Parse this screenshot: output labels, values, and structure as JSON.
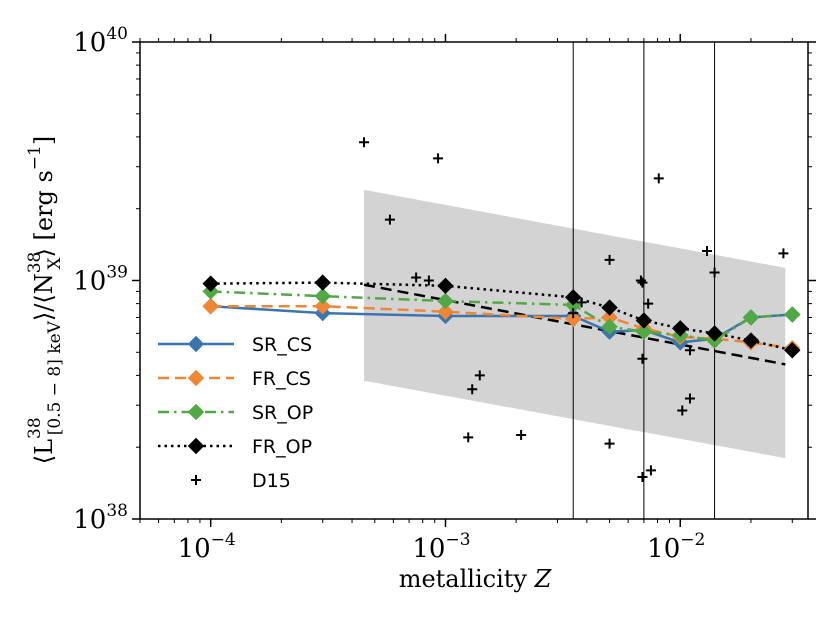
{
  "chart_data": {
    "type": "line",
    "title": "",
    "xlabel": "metallicity Z",
    "xlabel_text": "metallicity",
    "xlabel_var": "Z",
    "ylabel": "⟨L^38_[0.5−8] keV⟩/⟨N^38_X⟩ [erg s^−1]",
    "ylabel_parts": {
      "open": "⟨L",
      "sup": "38",
      "sub": "[0.5 − 8] keV",
      "mid": "⟩/⟨N",
      "sup2": "38",
      "sub2": "X",
      "close": "⟩ [erg s",
      "unit_sup": "−1",
      "end": "]"
    },
    "xscale": "log",
    "yscale": "log",
    "xlim": [
      5e-05,
      0.035
    ],
    "ylim": [
      1e+38,
      1e+40
    ],
    "x_ticks": [
      {
        "value": 0.0001,
        "base": "10",
        "exp": "−4"
      },
      {
        "value": 0.001,
        "base": "10",
        "exp": "−3"
      },
      {
        "value": 0.01,
        "base": "10",
        "exp": "−2"
      }
    ],
    "y_ticks": [
      {
        "value": 1e+38,
        "base": "10",
        "exp": "38"
      },
      {
        "value": 1e+39,
        "base": "10",
        "exp": "39"
      },
      {
        "value": 1e+40,
        "base": "10",
        "exp": "40"
      }
    ],
    "series": [
      {
        "name": "SR_CS",
        "color": "#3b75af",
        "dash": "solid",
        "marker": "diamond",
        "points": [
          [
            0.0001,
            7.8e+38
          ],
          [
            0.0003,
            7.3e+38
          ],
          [
            0.001,
            7.1e+38
          ],
          [
            0.0035,
            7.1e+38
          ],
          [
            0.005,
            6.1e+38
          ],
          [
            0.007,
            6.2e+38
          ],
          [
            0.01,
            5.5e+38
          ],
          [
            0.014,
            5.7e+38
          ],
          [
            0.02,
            7e+38
          ],
          [
            0.03,
            7.2e+38
          ]
        ]
      },
      {
        "name": "FR_CS",
        "color": "#ef8636",
        "dash": "dashed",
        "marker": "diamond",
        "points": [
          [
            0.0001,
            7.8e+38
          ],
          [
            0.0003,
            7.8e+38
          ],
          [
            0.001,
            7.4e+38
          ],
          [
            0.0035,
            6.9e+38
          ],
          [
            0.005,
            7e+38
          ],
          [
            0.007,
            6.3e+38
          ],
          [
            0.01,
            5.8e+38
          ],
          [
            0.014,
            5.7e+38
          ],
          [
            0.02,
            5.5e+38
          ],
          [
            0.03,
            5.2e+38
          ]
        ]
      },
      {
        "name": "SR_OP",
        "color": "#51a845",
        "dash": "dashdot",
        "marker": "diamond",
        "points": [
          [
            0.0001,
            9e+38
          ],
          [
            0.0003,
            8.6e+38
          ],
          [
            0.001,
            8.2e+38
          ],
          [
            0.0035,
            7.9e+38
          ],
          [
            0.005,
            6.4e+38
          ],
          [
            0.007,
            6.1e+38
          ],
          [
            0.01,
            5.9e+38
          ],
          [
            0.014,
            5.6e+38
          ],
          [
            0.02,
            7e+38
          ],
          [
            0.03,
            7.2e+38
          ]
        ]
      },
      {
        "name": "FR_OP",
        "color": "#000000",
        "dash": "dotted",
        "marker": "diamond",
        "points": [
          [
            0.0001,
            9.7e+38
          ],
          [
            0.0003,
            9.8e+38
          ],
          [
            0.001,
            9.5e+38
          ],
          [
            0.0035,
            8.5e+38
          ],
          [
            0.005,
            7.7e+38
          ],
          [
            0.007,
            6.8e+38
          ],
          [
            0.01,
            6.3e+38
          ],
          [
            0.014,
            6e+38
          ],
          [
            0.02,
            5.6e+38
          ],
          [
            0.03,
            5.1e+38
          ]
        ]
      },
      {
        "name": "D15",
        "color": "#000000",
        "marker": "plus",
        "line": "none",
        "points": [
          [
            0.00045,
            3.8e+39
          ],
          [
            0.00058,
            1.8e+39
          ],
          [
            0.00075,
            1.03e+39
          ],
          [
            0.00085,
            1e+39
          ],
          [
            0.00093,
            3.25e+39
          ],
          [
            0.0013,
            3.5e+38
          ],
          [
            0.00125,
            2.2e+38
          ],
          [
            0.0014,
            4e+38
          ],
          [
            0.0021,
            2.25e+38
          ],
          [
            0.0035,
            7.3e+38
          ],
          [
            0.0038,
            8.1e+38
          ],
          [
            0.005,
            1.22e+39
          ],
          [
            0.005,
            2.07e+38
          ],
          [
            0.0068,
            1e+39
          ],
          [
            0.0069,
            9.8e+38
          ],
          [
            0.0069,
            4.7e+38
          ],
          [
            0.0069,
            1.5e+38
          ],
          [
            0.0073,
            8e+38
          ],
          [
            0.0075,
            1.6e+38
          ],
          [
            0.0081,
            2.68e+39
          ],
          [
            0.0102,
            2.85e+38
          ],
          [
            0.011,
            3.2e+38
          ],
          [
            0.011,
            5.1e+38
          ],
          [
            0.013,
            1.33e+39
          ],
          [
            0.014,
            1.08e+39
          ],
          [
            0.0275,
            1.3e+39
          ]
        ]
      }
    ],
    "fit_line": {
      "style": "dashed",
      "color": "#000000",
      "points": [
        [
          0.00045,
          9.6e+38
        ],
        [
          0.028,
          4.45e+38
        ]
      ]
    },
    "band": {
      "color": "#d3d3d3",
      "x": [
        0.00045,
        0.028
      ],
      "upper": [
        2.4e+39,
        1.13e+39
      ],
      "lower": [
        3.8e+38,
        1.8e+38
      ]
    },
    "vertical_lines": [
      0.0035,
      0.007,
      0.014
    ],
    "legend_position": "center-left"
  }
}
